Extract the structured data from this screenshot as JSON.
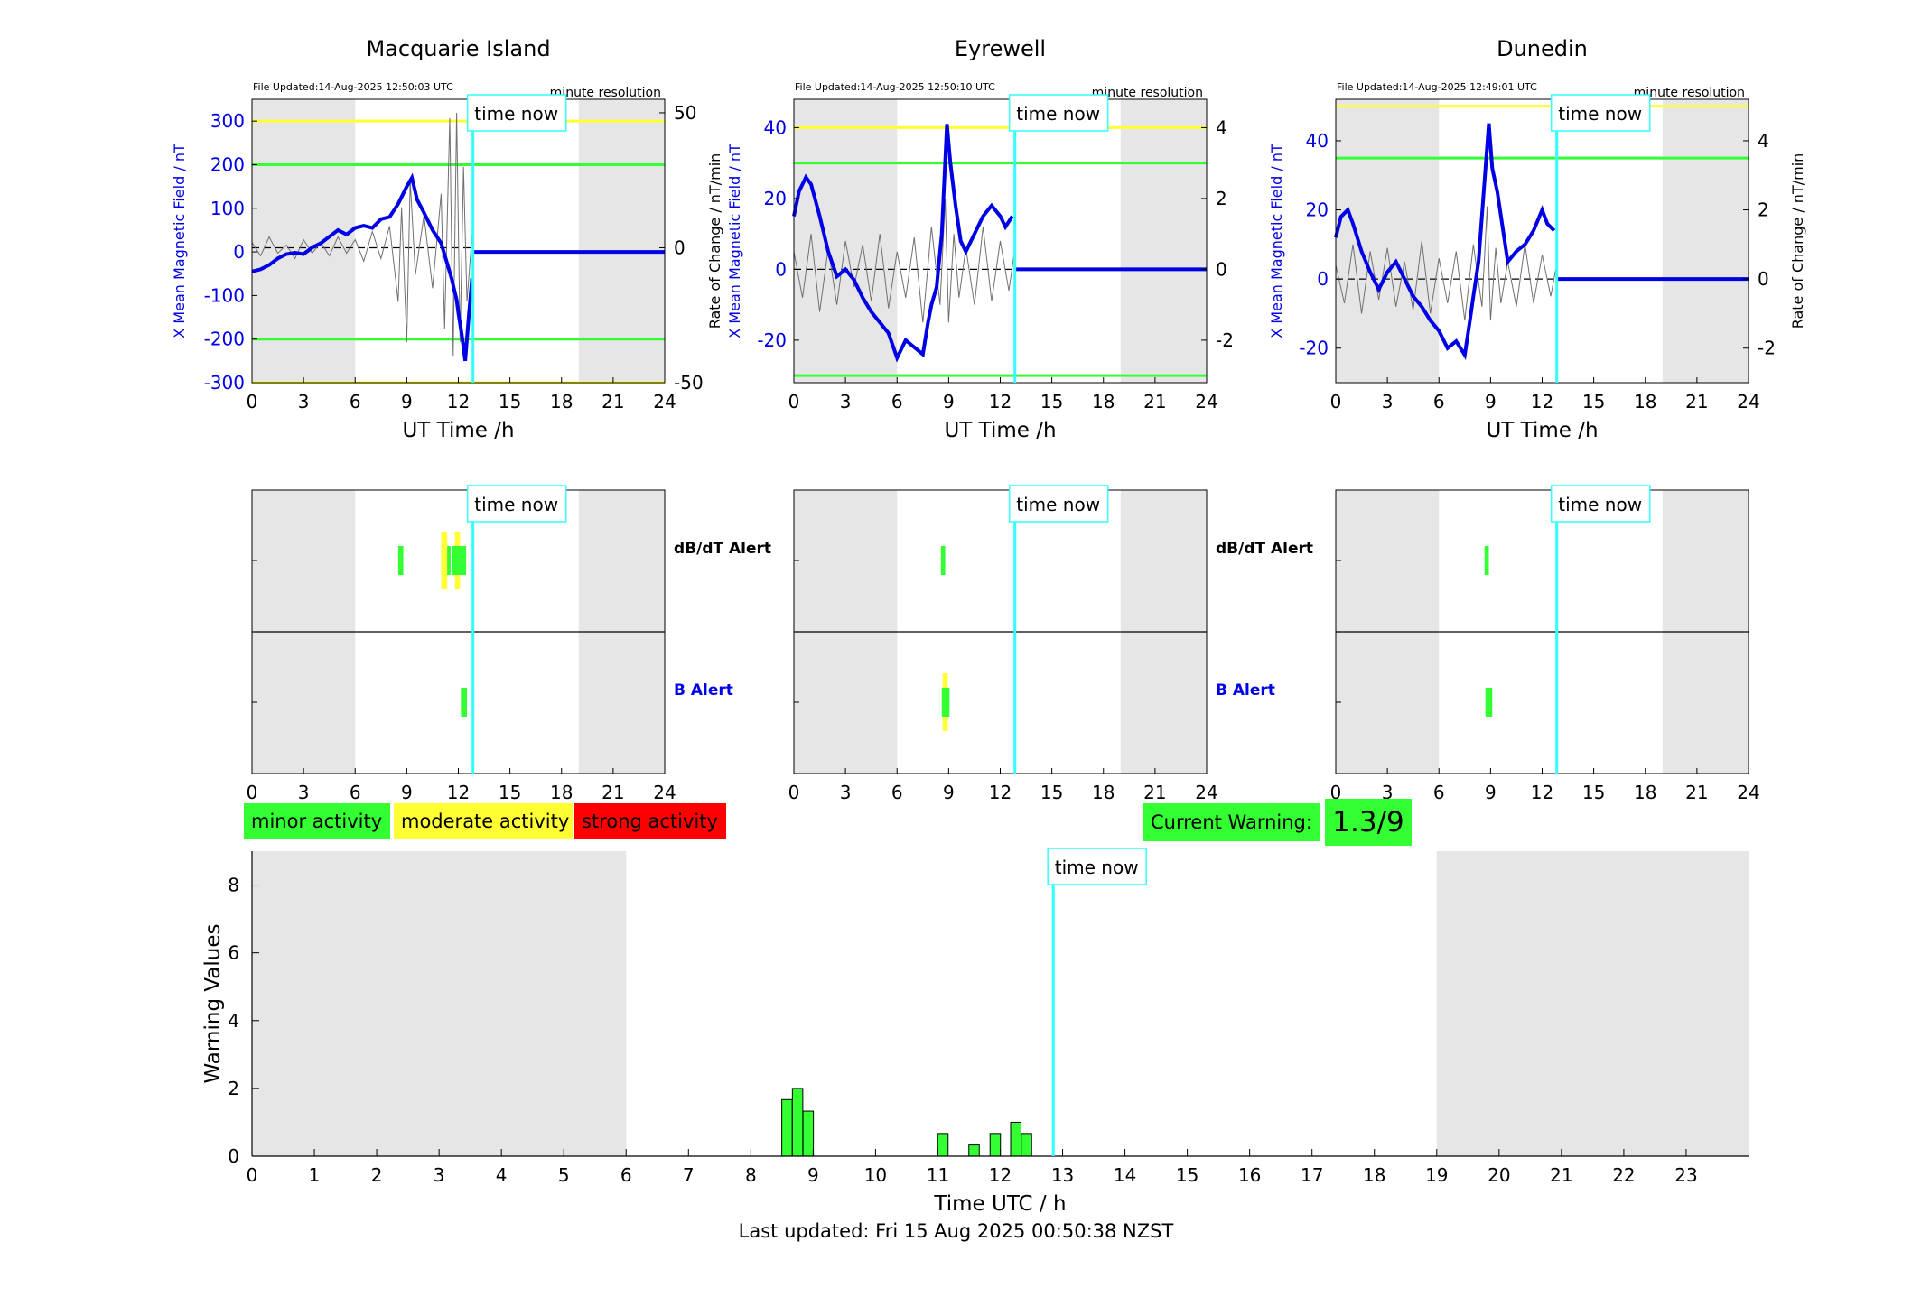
{
  "colors": {
    "night_shade": "#e6e6e6",
    "field_line": "#0000e6",
    "rate_line": "#707070",
    "alert_yellow": "#ffff33",
    "alert_green": "#33ff33",
    "time_now_line": "#33ffff",
    "bar_green": "#33ff33",
    "strong_red": "#ff0000"
  },
  "legend": {
    "minor": "minor activity",
    "moderate": "moderate activity",
    "strong": "strong activity"
  },
  "current_warning": {
    "label": "Current Warning:",
    "value": "1.3/9"
  },
  "last_updated": "Last updated: Fri 15 Aug 2025 00:50:38 NZST",
  "time_now_label": "time now",
  "time_now_hour": 12.85,
  "alert_labels": {
    "dbdt": "dB/dT Alert",
    "b": "B Alert"
  },
  "top_axes": {
    "xlabel": "UT Time /h",
    "ylabel_left": "X Mean Magnetic Field / nT",
    "ylabel_right": "Rate of Change / nT/min",
    "resolution": "minute resolution",
    "xticks": [
      0,
      3,
      6,
      9,
      12,
      15,
      18,
      21,
      24
    ],
    "night": [
      [
        0,
        6
      ],
      [
        19,
        24
      ]
    ]
  },
  "stations": [
    {
      "name": "Macquarie Island",
      "updated": "File Updated:14-Aug-2025 12:50:03 UTC",
      "show_left_ylabel": true,
      "show_right_ylabel": false,
      "ylim_left": [
        -300,
        350
      ],
      "yticks_left": [
        300,
        200,
        100,
        0,
        -100,
        -200,
        -300
      ],
      "ylim_right": [
        -50,
        55
      ],
      "yticks_right": [
        50,
        0,
        -50
      ],
      "thresholds": [
        {
          "value": 300,
          "color": "yellow"
        },
        {
          "value": 200,
          "color": "green"
        },
        {
          "value": -200,
          "color": "green"
        },
        {
          "value": -300,
          "color": "yellow"
        }
      ],
      "field": [
        [
          0,
          -45
        ],
        [
          0.5,
          -40
        ],
        [
          1,
          -30
        ],
        [
          1.5,
          -15
        ],
        [
          2,
          -5
        ],
        [
          2.5,
          -2
        ],
        [
          3,
          -5
        ],
        [
          3.5,
          10
        ],
        [
          4,
          20
        ],
        [
          4.5,
          35
        ],
        [
          5,
          50
        ],
        [
          5.5,
          40
        ],
        [
          6,
          55
        ],
        [
          6.5,
          60
        ],
        [
          7,
          55
        ],
        [
          7.5,
          75
        ],
        [
          8,
          80
        ],
        [
          8.5,
          110
        ],
        [
          9,
          150
        ],
        [
          9.3,
          170
        ],
        [
          9.6,
          120
        ],
        [
          10,
          90
        ],
        [
          10.5,
          50
        ],
        [
          11,
          20
        ],
        [
          11.3,
          -20
        ],
        [
          11.6,
          -60
        ],
        [
          11.9,
          -110
        ],
        [
          12,
          -140
        ],
        [
          12.2,
          -190
        ],
        [
          12.4,
          -250
        ],
        [
          12.6,
          -150
        ],
        [
          12.8,
          -60
        ]
      ],
      "rate": [
        [
          0,
          2
        ],
        [
          0.5,
          -3
        ],
        [
          1,
          4
        ],
        [
          1.5,
          -2
        ],
        [
          2,
          1
        ],
        [
          2.5,
          -4
        ],
        [
          3,
          3
        ],
        [
          3.5,
          -2
        ],
        [
          4,
          2
        ],
        [
          4.5,
          -3
        ],
        [
          5,
          4
        ],
        [
          5.5,
          -2
        ],
        [
          6,
          3
        ],
        [
          6.5,
          -5
        ],
        [
          7,
          6
        ],
        [
          7.5,
          -4
        ],
        [
          8,
          8
        ],
        [
          8.5,
          -20
        ],
        [
          8.7,
          15
        ],
        [
          9,
          -35
        ],
        [
          9.2,
          25
        ],
        [
          9.5,
          -10
        ],
        [
          10,
          12
        ],
        [
          10.5,
          -15
        ],
        [
          11,
          20
        ],
        [
          11.2,
          -30
        ],
        [
          11.5,
          48
        ],
        [
          11.7,
          -40
        ],
        [
          11.9,
          50
        ],
        [
          12.1,
          -35
        ],
        [
          12.3,
          30
        ],
        [
          12.5,
          -20
        ],
        [
          12.8,
          5
        ]
      ],
      "dbdt_alerts": [
        {
          "start": 8.5,
          "end": 8.8,
          "level": "minor"
        },
        {
          "start": 11.0,
          "end": 11.35,
          "level": "moderate"
        },
        {
          "start": 11.35,
          "end": 11.55,
          "level": "minor"
        },
        {
          "start": 11.8,
          "end": 12.1,
          "level": "moderate"
        },
        {
          "start": 11.6,
          "end": 12.45,
          "level": "minor"
        }
      ],
      "b_alerts": [
        {
          "start": 12.15,
          "end": 12.5,
          "level": "minor"
        }
      ]
    },
    {
      "name": "Eyrewell",
      "updated": "File Updated:14-Aug-2025 12:50:10 UTC",
      "show_left_ylabel": true,
      "show_right_ylabel": true,
      "ylim_left": [
        -32,
        48
      ],
      "yticks_left": [
        40,
        20,
        0,
        -20
      ],
      "ylim_right": [
        -3.2,
        4.8
      ],
      "yticks_right": [
        4,
        2,
        0,
        -2
      ],
      "thresholds": [
        {
          "value": 40,
          "color": "yellow"
        },
        {
          "value": 30,
          "color": "green"
        },
        {
          "value": -30,
          "color": "green"
        }
      ],
      "field": [
        [
          0,
          15
        ],
        [
          0.3,
          22
        ],
        [
          0.7,
          26
        ],
        [
          1,
          24
        ],
        [
          1.5,
          15
        ],
        [
          2,
          5
        ],
        [
          2.5,
          -2
        ],
        [
          3,
          0
        ],
        [
          3.5,
          -3
        ],
        [
          4,
          -8
        ],
        [
          4.5,
          -12
        ],
        [
          5,
          -15
        ],
        [
          5.5,
          -18
        ],
        [
          6,
          -25
        ],
        [
          6.5,
          -20
        ],
        [
          7,
          -22
        ],
        [
          7.5,
          -24
        ],
        [
          7.8,
          -15
        ],
        [
          8,
          -10
        ],
        [
          8.3,
          -5
        ],
        [
          8.6,
          10
        ],
        [
          8.9,
          41
        ],
        [
          9.1,
          30
        ],
        [
          9.4,
          18
        ],
        [
          9.7,
          8
        ],
        [
          10,
          5
        ],
        [
          10.5,
          10
        ],
        [
          11,
          15
        ],
        [
          11.5,
          18
        ],
        [
          12,
          15
        ],
        [
          12.3,
          12
        ],
        [
          12.7,
          15
        ]
      ],
      "rate": [
        [
          0,
          0.5
        ],
        [
          0.5,
          -0.8
        ],
        [
          1,
          1
        ],
        [
          1.5,
          -1.2
        ],
        [
          2,
          0.6
        ],
        [
          2.5,
          -1
        ],
        [
          3,
          0.8
        ],
        [
          3.5,
          -0.5
        ],
        [
          4,
          0.7
        ],
        [
          4.5,
          -0.9
        ],
        [
          5,
          1
        ],
        [
          5.5,
          -1.1
        ],
        [
          6,
          0.5
        ],
        [
          6.5,
          -0.8
        ],
        [
          7,
          0.9
        ],
        [
          7.5,
          -1.5
        ],
        [
          8,
          1.2
        ],
        [
          8.5,
          -1
        ],
        [
          8.8,
          2
        ],
        [
          9,
          -1.5
        ],
        [
          9.3,
          1
        ],
        [
          9.6,
          -0.8
        ],
        [
          10,
          0.6
        ],
        [
          10.5,
          -1
        ],
        [
          11,
          1.2
        ],
        [
          11.5,
          -0.9
        ],
        [
          12,
          0.8
        ],
        [
          12.5,
          -0.6
        ],
        [
          12.8,
          0.4
        ]
      ],
      "dbdt_alerts": [
        {
          "start": 8.55,
          "end": 8.8,
          "level": "minor"
        }
      ],
      "b_alerts": [
        {
          "start": 8.65,
          "end": 8.95,
          "level": "moderate"
        },
        {
          "start": 8.6,
          "end": 9.05,
          "level": "minor"
        }
      ]
    },
    {
      "name": "Dunedin",
      "updated": "File Updated:14-Aug-2025 12:49:01 UTC",
      "show_left_ylabel": true,
      "show_right_ylabel": true,
      "ylim_left": [
        -30,
        52
      ],
      "yticks_left": [
        40,
        20,
        0,
        -20
      ],
      "ylim_right": [
        -3,
        5.2
      ],
      "yticks_right": [
        4,
        2,
        0,
        -2
      ],
      "thresholds": [
        {
          "value": 50,
          "color": "yellow"
        },
        {
          "value": 35,
          "color": "green"
        }
      ],
      "field": [
        [
          0,
          12
        ],
        [
          0.3,
          18
        ],
        [
          0.7,
          20
        ],
        [
          1,
          16
        ],
        [
          1.5,
          8
        ],
        [
          2,
          2
        ],
        [
          2.5,
          -3
        ],
        [
          3,
          2
        ],
        [
          3.5,
          5
        ],
        [
          4,
          0
        ],
        [
          4.5,
          -5
        ],
        [
          5,
          -8
        ],
        [
          5.5,
          -12
        ],
        [
          6,
          -15
        ],
        [
          6.5,
          -20
        ],
        [
          7,
          -18
        ],
        [
          7.5,
          -22
        ],
        [
          7.8,
          -12
        ],
        [
          8,
          -5
        ],
        [
          8.3,
          5
        ],
        [
          8.6,
          25
        ],
        [
          8.9,
          45
        ],
        [
          9.1,
          32
        ],
        [
          9.4,
          25
        ],
        [
          9.7,
          15
        ],
        [
          10,
          5
        ],
        [
          10.5,
          8
        ],
        [
          11,
          10
        ],
        [
          11.5,
          14
        ],
        [
          12,
          20
        ],
        [
          12.3,
          16
        ],
        [
          12.7,
          14
        ]
      ],
      "rate": [
        [
          0,
          0.4
        ],
        [
          0.5,
          -0.7
        ],
        [
          1,
          1
        ],
        [
          1.5,
          -1
        ],
        [
          2,
          0.8
        ],
        [
          2.5,
          -0.6
        ],
        [
          3,
          0.9
        ],
        [
          3.5,
          -0.8
        ],
        [
          4,
          0.5
        ],
        [
          4.5,
          -0.9
        ],
        [
          5,
          1.1
        ],
        [
          5.5,
          -1
        ],
        [
          6,
          0.6
        ],
        [
          6.5,
          -0.7
        ],
        [
          7,
          0.8
        ],
        [
          7.5,
          -1.2
        ],
        [
          8,
          1
        ],
        [
          8.5,
          -0.8
        ],
        [
          8.8,
          2.1
        ],
        [
          9,
          -1.2
        ],
        [
          9.3,
          0.9
        ],
        [
          9.6,
          -0.7
        ],
        [
          10,
          0.5
        ],
        [
          10.5,
          -0.8
        ],
        [
          11,
          1
        ],
        [
          11.5,
          -0.7
        ],
        [
          12,
          0.7
        ],
        [
          12.5,
          -0.5
        ],
        [
          12.8,
          0.3
        ]
      ],
      "dbdt_alerts": [
        {
          "start": 8.65,
          "end": 8.9,
          "level": "minor"
        }
      ],
      "b_alerts": [
        {
          "start": 8.7,
          "end": 9.1,
          "level": "minor"
        }
      ]
    }
  ],
  "warning_chart": {
    "type": "bar",
    "xlabel": "Time UTC / h",
    "ylabel": "Warning Values",
    "xlim": [
      0,
      24
    ],
    "ylim": [
      0,
      9
    ],
    "xticks": [
      0,
      1,
      2,
      3,
      4,
      5,
      6,
      7,
      8,
      9,
      10,
      11,
      12,
      13,
      14,
      15,
      16,
      17,
      18,
      19,
      20,
      21,
      22,
      23
    ],
    "yticks": [
      0,
      2,
      4,
      6,
      8
    ],
    "night": [
      [
        0,
        6
      ],
      [
        19,
        24
      ]
    ],
    "bars": [
      {
        "x": 8.58,
        "value": 1.67
      },
      {
        "x": 8.75,
        "value": 2.0
      },
      {
        "x": 8.92,
        "value": 1.33
      },
      {
        "x": 11.08,
        "value": 0.67
      },
      {
        "x": 11.58,
        "value": 0.33
      },
      {
        "x": 11.92,
        "value": 0.67
      },
      {
        "x": 12.25,
        "value": 1.0
      },
      {
        "x": 12.42,
        "value": 0.67
      }
    ]
  }
}
